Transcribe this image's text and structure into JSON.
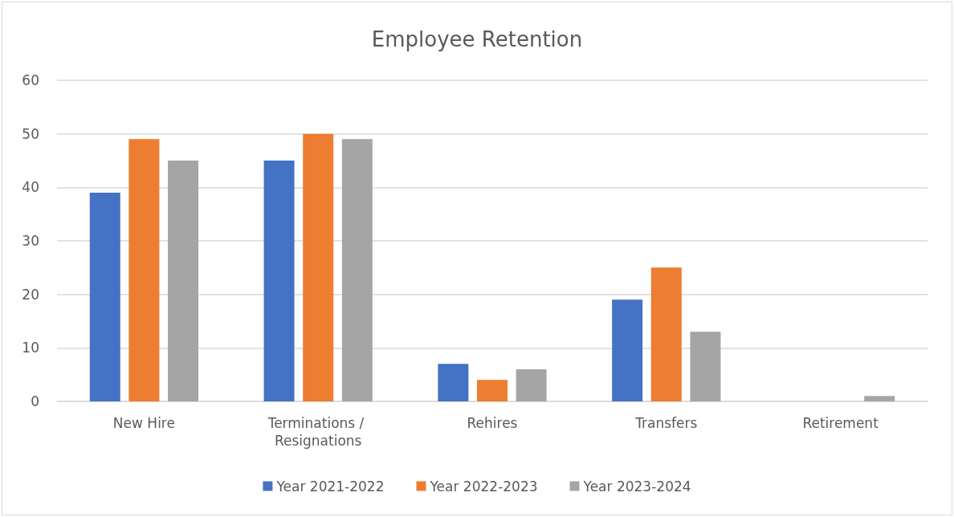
{
  "chart_data": {
    "type": "bar",
    "title": "Employee Retention",
    "categories": [
      "New Hire",
      "Terminations / Resignations",
      "Rehires",
      "Transfers",
      "Retirement"
    ],
    "series": [
      {
        "name": "Year 2021-2022",
        "color": "#4472c4",
        "values": [
          39,
          45,
          7,
          19,
          0
        ]
      },
      {
        "name": "Year 2022-2023",
        "color": "#ed7d31",
        "values": [
          49,
          50,
          4,
          25,
          0
        ]
      },
      {
        "name": "Year 2023-2024",
        "color": "#a5a5a5",
        "values": [
          45,
          49,
          6,
          13,
          1
        ]
      }
    ],
    "ylim": [
      0,
      60
    ],
    "yticks": [
      0,
      10,
      20,
      30,
      40,
      50,
      60
    ],
    "grid": "y",
    "legend": "bottom"
  }
}
